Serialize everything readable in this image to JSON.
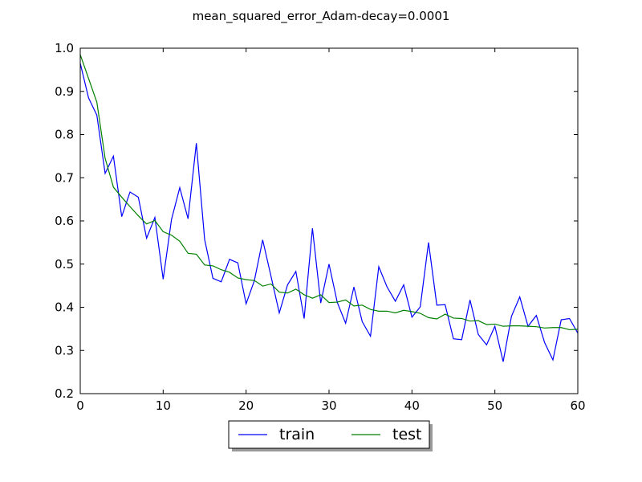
{
  "chart_data": {
    "type": "line",
    "title": "mean_squared_error_Adam-decay=0.0001",
    "xlabel": "",
    "ylabel": "",
    "xlim": [
      0,
      60
    ],
    "ylim": [
      0.2,
      1.0
    ],
    "x_ticks": [
      0,
      10,
      20,
      30,
      40,
      50,
      60
    ],
    "y_ticks": [
      0.2,
      0.3,
      0.4,
      0.5,
      0.6,
      0.7,
      0.8,
      0.9,
      1.0
    ],
    "x_tick_labels": [
      "0",
      "10",
      "20",
      "30",
      "40",
      "50",
      "60"
    ],
    "y_tick_labels": [
      "0.2",
      "0.3",
      "0.4",
      "0.5",
      "0.6",
      "0.7",
      "0.8",
      "0.9",
      "1.0"
    ],
    "grid": false,
    "legend_position": "bottom-center",
    "x": [
      0,
      1,
      2,
      3,
      4,
      5,
      6,
      7,
      8,
      9,
      10,
      11,
      12,
      13,
      14,
      15,
      16,
      17,
      18,
      19,
      20,
      21,
      22,
      23,
      24,
      25,
      26,
      27,
      28,
      29,
      30,
      31,
      32,
      33,
      34,
      35,
      36,
      37,
      38,
      39,
      40,
      41,
      42,
      43,
      44,
      45,
      46,
      47,
      48,
      49,
      50,
      51,
      52,
      53,
      54,
      55,
      56,
      57,
      58,
      59,
      60
    ],
    "series": [
      {
        "name": "train",
        "color": "#0000ff",
        "values": [
          0.965,
          0.885,
          0.845,
          0.71,
          0.75,
          0.61,
          0.667,
          0.655,
          0.56,
          0.608,
          0.465,
          0.603,
          0.677,
          0.605,
          0.78,
          0.557,
          0.467,
          0.459,
          0.511,
          0.503,
          0.408,
          0.462,
          0.556,
          0.472,
          0.387,
          0.452,
          0.483,
          0.374,
          0.583,
          0.41,
          0.5,
          0.411,
          0.363,
          0.447,
          0.367,
          0.333,
          0.494,
          0.447,
          0.414,
          0.452,
          0.377,
          0.401,
          0.55,
          0.405,
          0.406,
          0.327,
          0.325,
          0.417,
          0.337,
          0.313,
          0.356,
          0.274,
          0.379,
          0.424,
          0.356,
          0.381,
          0.318,
          0.278,
          0.371,
          0.374,
          0.34
        ]
      },
      {
        "name": "test",
        "color": "#008000",
        "values": [
          0.985,
          0.93,
          0.875,
          0.745,
          0.678,
          0.655,
          0.633,
          0.612,
          0.593,
          0.601,
          0.575,
          0.567,
          0.553,
          0.525,
          0.523,
          0.498,
          0.496,
          0.487,
          0.481,
          0.468,
          0.464,
          0.462,
          0.449,
          0.454,
          0.435,
          0.433,
          0.442,
          0.429,
          0.421,
          0.429,
          0.411,
          0.412,
          0.417,
          0.403,
          0.405,
          0.395,
          0.391,
          0.391,
          0.387,
          0.393,
          0.39,
          0.386,
          0.376,
          0.373,
          0.384,
          0.375,
          0.374,
          0.368,
          0.369,
          0.36,
          0.361,
          0.356,
          0.357,
          0.357,
          0.356,
          0.355,
          0.352,
          0.353,
          0.353,
          0.348,
          0.349
        ]
      }
    ]
  }
}
